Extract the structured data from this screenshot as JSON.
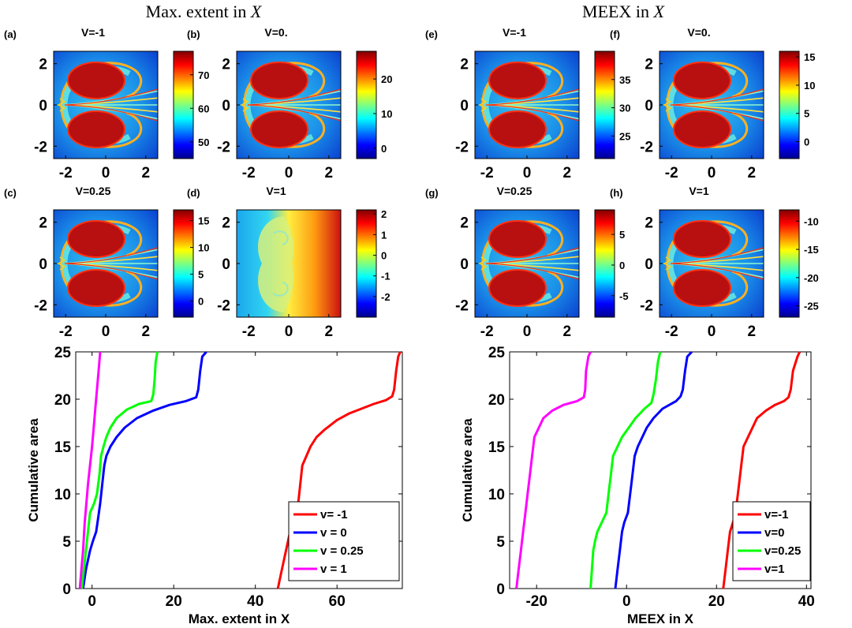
{
  "section_titles": {
    "left": "Max. extent in",
    "right": "MEEX in",
    "var": "X"
  },
  "heatmaps": {
    "x_ticks": [
      "-2",
      "0",
      "2"
    ],
    "y_ticks": [
      "2",
      "0",
      "-2"
    ],
    "x_values": [
      -2,
      0,
      2
    ],
    "y_values": [
      2,
      0,
      -2
    ],
    "xlim": [
      -2.6,
      2.6
    ],
    "ylim": [
      -2.6,
      2.6
    ],
    "panels": [
      {
        "label": "(a)",
        "title": "V=-1",
        "pattern": "lobes",
        "colorbar_ticks": [
          "70",
          "60",
          "50"
        ],
        "colorbar_values": [
          70,
          60,
          50
        ],
        "crange": [
          45,
          77
        ]
      },
      {
        "label": "(b)",
        "title": "V=0.",
        "pattern": "lobes",
        "colorbar_ticks": [
          "20",
          "10",
          "0"
        ],
        "colorbar_values": [
          20,
          10,
          0
        ],
        "crange": [
          -3,
          28
        ]
      },
      {
        "label": "(c)",
        "title": "V=0.25",
        "pattern": "lobes",
        "colorbar_ticks": [
          "15",
          "10",
          "5",
          "0"
        ],
        "colorbar_values": [
          15,
          10,
          5,
          0
        ],
        "crange": [
          -3,
          17
        ]
      },
      {
        "label": "(d)",
        "title": "V=1",
        "pattern": "flow",
        "colorbar_ticks": [
          "2",
          "1",
          "0",
          "-1",
          "-2"
        ],
        "colorbar_values": [
          2,
          1,
          0,
          -1,
          -2
        ],
        "crange": [
          -3,
          2.2
        ]
      },
      {
        "label": "(e)",
        "title": "V=-1",
        "pattern": "lobes",
        "colorbar_ticks": [
          "35",
          "30",
          "25"
        ],
        "colorbar_values": [
          35,
          30,
          25
        ],
        "crange": [
          21,
          40
        ]
      },
      {
        "label": "(f)",
        "title": "V=0.",
        "pattern": "lobes",
        "colorbar_ticks": [
          "15",
          "10",
          "5",
          "0"
        ],
        "colorbar_values": [
          15,
          10,
          5,
          0
        ],
        "crange": [
          -3,
          16
        ]
      },
      {
        "label": "(g)",
        "title": "V=0.25",
        "pattern": "lobes",
        "colorbar_ticks": [
          "5",
          "0",
          "-5"
        ],
        "colorbar_values": [
          5,
          0,
          -5
        ],
        "crange": [
          -8.5,
          9
        ]
      },
      {
        "label": "(h)",
        "title": "V=1",
        "pattern": "lobes",
        "colorbar_ticks": [
          "-10",
          "-15",
          "-20",
          "-25"
        ],
        "colorbar_values": [
          -10,
          -15,
          -20,
          -25
        ],
        "crange": [
          -27,
          -8
        ]
      }
    ]
  },
  "chart_data": [
    {
      "type": "line",
      "xlabel": "Max. extent in X",
      "ylabel": "Cumulative area",
      "xlim": [
        -4,
        76
      ],
      "ylim": [
        0,
        25
      ],
      "x_ticks": [
        0,
        20,
        40,
        60
      ],
      "y_ticks": [
        0,
        5,
        10,
        15,
        20,
        25
      ],
      "legend_position": "bottom-right",
      "series": [
        {
          "name": "v= -1",
          "color": "#ff0000",
          "points": [
            [
              45.5,
              0
            ],
            [
              46.5,
              2
            ],
            [
              47.5,
              4
            ],
            [
              48.5,
              6
            ],
            [
              49.5,
              7.5
            ],
            [
              50.5,
              9
            ],
            [
              51,
              11
            ],
            [
              51.5,
              13
            ],
            [
              52.5,
              14
            ],
            [
              53.5,
              15
            ],
            [
              55,
              16
            ],
            [
              57,
              16.8
            ],
            [
              60,
              17.8
            ],
            [
              63,
              18.5
            ],
            [
              66,
              19
            ],
            [
              69,
              19.5
            ],
            [
              72,
              19.9
            ],
            [
              73.5,
              20.3
            ],
            [
              74,
              21
            ],
            [
              74.5,
              23
            ],
            [
              75,
              24.5
            ],
            [
              75.5,
              25
            ]
          ]
        },
        {
          "name": "v = 0",
          "color": "#0000ff",
          "points": [
            [
              -2.2,
              0
            ],
            [
              -1.5,
              2
            ],
            [
              -0.5,
              4
            ],
            [
              0.2,
              5
            ],
            [
              1,
              6
            ],
            [
              1.5,
              7.5
            ],
            [
              2,
              9
            ],
            [
              2.5,
              11
            ],
            [
              3,
              13
            ],
            [
              3.5,
              14
            ],
            [
              4.5,
              15
            ],
            [
              6,
              16
            ],
            [
              8,
              17
            ],
            [
              11,
              18
            ],
            [
              15,
              18.8
            ],
            [
              19,
              19.4
            ],
            [
              23,
              19.8
            ],
            [
              25.5,
              20.2
            ],
            [
              26,
              21
            ],
            [
              26.5,
              23
            ],
            [
              27,
              24.5
            ],
            [
              28,
              25
            ]
          ]
        },
        {
          "name": "v = 0.25",
          "color": "#00ff00",
          "points": [
            [
              -2.5,
              0
            ],
            [
              -2,
              2
            ],
            [
              -1.5,
              4
            ],
            [
              -1,
              6
            ],
            [
              -0.5,
              8
            ],
            [
              0.5,
              9
            ],
            [
              1.2,
              10
            ],
            [
              1.8,
              12
            ],
            [
              2.2,
              14
            ],
            [
              2.8,
              15
            ],
            [
              3.5,
              16
            ],
            [
              4.5,
              17
            ],
            [
              6,
              18
            ],
            [
              8.5,
              18.9
            ],
            [
              11.5,
              19.5
            ],
            [
              14.5,
              19.8
            ],
            [
              15,
              20.5
            ],
            [
              15.3,
              22
            ],
            [
              15.6,
              24
            ],
            [
              16,
              25
            ]
          ]
        },
        {
          "name": "v = 1",
          "color": "#ff00ff",
          "points": [
            [
              -3,
              0
            ],
            [
              -2.6,
              2
            ],
            [
              -2.2,
              4
            ],
            [
              -1.8,
              7
            ],
            [
              -1.4,
              9
            ],
            [
              -1,
              11
            ],
            [
              -0.5,
              13
            ],
            [
              0,
              15
            ],
            [
              0.4,
              17
            ],
            [
              0.8,
              19
            ],
            [
              1.2,
              21
            ],
            [
              1.6,
              23
            ],
            [
              2,
              25
            ]
          ]
        }
      ]
    },
    {
      "type": "line",
      "xlabel": "MEEX in X",
      "ylabel": "Cumulative area",
      "xlim": [
        -26,
        41
      ],
      "ylim": [
        0,
        25
      ],
      "x_ticks": [
        -20,
        0,
        20,
        40
      ],
      "y_ticks": [
        0,
        5,
        10,
        15,
        20,
        25
      ],
      "legend_position": "bottom-right",
      "series": [
        {
          "name": "v=-1",
          "color": "#ff0000",
          "points": [
            [
              21.5,
              0
            ],
            [
              22,
              2
            ],
            [
              22.5,
              4
            ],
            [
              23,
              6
            ],
            [
              24,
              7.5
            ],
            [
              24.5,
              9
            ],
            [
              25,
              11
            ],
            [
              25.5,
              13
            ],
            [
              26,
              15
            ],
            [
              27,
              16
            ],
            [
              28,
              17
            ],
            [
              29,
              18
            ],
            [
              31,
              18.8
            ],
            [
              33,
              19.4
            ],
            [
              35,
              19.8
            ],
            [
              36,
              20.2
            ],
            [
              36.5,
              21
            ],
            [
              37,
              23
            ],
            [
              38,
              24.5
            ],
            [
              38.5,
              25
            ]
          ]
        },
        {
          "name": "v=0",
          "color": "#0000ff",
          "points": [
            [
              -2.5,
              0
            ],
            [
              -2,
              2
            ],
            [
              -1.5,
              4
            ],
            [
              -1,
              6
            ],
            [
              -0.5,
              7
            ],
            [
              0.3,
              8
            ],
            [
              0.8,
              10
            ],
            [
              1.3,
              12
            ],
            [
              1.8,
              14
            ],
            [
              2.5,
              15
            ],
            [
              3.5,
              16
            ],
            [
              4.5,
              17
            ],
            [
              6,
              18
            ],
            [
              8,
              19
            ],
            [
              11,
              19.8
            ],
            [
              12,
              20.3
            ],
            [
              12.5,
              21
            ],
            [
              13,
              23
            ],
            [
              13.5,
              24.5
            ],
            [
              14.5,
              25
            ]
          ]
        },
        {
          "name": "v=0.25",
          "color": "#00ff00",
          "points": [
            [
              -8,
              0
            ],
            [
              -7.7,
              2
            ],
            [
              -7.4,
              4
            ],
            [
              -7,
              5
            ],
            [
              -6.5,
              6
            ],
            [
              -5.5,
              7
            ],
            [
              -4.5,
              8
            ],
            [
              -4,
              10
            ],
            [
              -3.5,
              12
            ],
            [
              -3,
              14
            ],
            [
              -2,
              15
            ],
            [
              -1,
              16
            ],
            [
              0.5,
              17
            ],
            [
              2,
              18
            ],
            [
              4,
              19
            ],
            [
              5.5,
              19.6
            ],
            [
              6,
              20.5
            ],
            [
              6.5,
              22
            ],
            [
              7,
              24
            ],
            [
              7.5,
              25
            ]
          ]
        },
        {
          "name": "v=1",
          "color": "#ff00ff",
          "points": [
            [
              -24.5,
              0
            ],
            [
              -24,
              2
            ],
            [
              -23.5,
              4
            ],
            [
              -23,
              6
            ],
            [
              -22.5,
              8
            ],
            [
              -22,
              10
            ],
            [
              -21.5,
              12
            ],
            [
              -21,
              14
            ],
            [
              -20.5,
              16
            ],
            [
              -19.5,
              17
            ],
            [
              -18.5,
              18
            ],
            [
              -16.5,
              18.8
            ],
            [
              -14,
              19.4
            ],
            [
              -11,
              19.8
            ],
            [
              -9.5,
              20.2
            ],
            [
              -9.2,
              21
            ],
            [
              -9,
              23
            ],
            [
              -8.5,
              24.5
            ],
            [
              -8,
              25
            ]
          ]
        }
      ]
    }
  ]
}
